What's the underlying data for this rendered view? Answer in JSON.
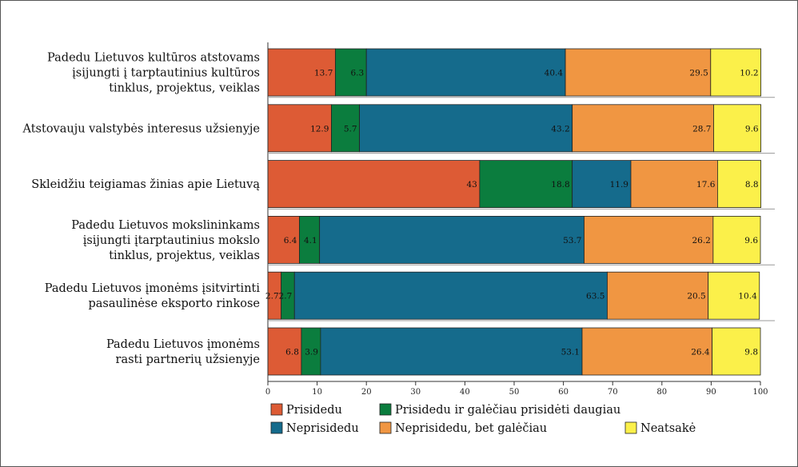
{
  "chart_data": {
    "type": "bar",
    "stacked": true,
    "orientation": "horizontal",
    "categories": [
      [
        "Padedu Lietuvos kultūros atstovams",
        "įsijungti į tarptautinius kultūros",
        "tinklus, projektus, veiklas"
      ],
      [
        "Atstovauju valstybės interesus užsienyje"
      ],
      [
        "Skleidžiu teigiamas žinias apie Lietuvą"
      ],
      [
        "Padedu Lietuvos mokslininkams",
        "įsijungti įtarptautinius mokslo",
        "tinklus, projektus, veiklas"
      ],
      [
        "Padedu Lietuvos įmonėms įsitvirtinti",
        "pasaulinėse eksporto rinkose"
      ],
      [
        "Padedu Lietuvos įmonėms",
        "rasti partnerių užsienyje"
      ]
    ],
    "series": [
      {
        "name": "Prisidedu",
        "color": "#dd5b35",
        "values": [
          13.7,
          12.9,
          43,
          6.4,
          2.7,
          6.8
        ]
      },
      {
        "name": "Prisidedu ir galėčiau prisidėti daugiau",
        "color": "#0b7d3e",
        "values": [
          6.3,
          5.7,
          18.8,
          4.1,
          2.7,
          3.9
        ]
      },
      {
        "name": "Neprisidedu",
        "color": "#156b8c",
        "values": [
          40.4,
          43.2,
          11.9,
          53.7,
          63.5,
          53.1
        ]
      },
      {
        "name": "Neprisidedu, bet galėčiau",
        "color": "#f09642",
        "values": [
          29.5,
          28.7,
          17.6,
          26.2,
          20.5,
          26.4
        ]
      },
      {
        "name": "Neatsakė",
        "color": "#fbf04a",
        "values": [
          10.2,
          9.6,
          8.8,
          9.6,
          10.4,
          9.8
        ]
      }
    ],
    "value_labels": [
      [
        "13.7",
        "6.3",
        "40.4",
        "29.5",
        "10.2"
      ],
      [
        "12.9",
        "5.7",
        "43.2",
        "28.7",
        "9.6"
      ],
      [
        "43",
        "18.8",
        "11.9",
        "17.6",
        "8.8"
      ],
      [
        "6.4",
        "4.1",
        "53.7",
        "26.2",
        "9.6"
      ],
      [
        "2.7",
        "2.7",
        "63.5",
        "20.5",
        "10.4"
      ],
      [
        "6.8",
        "3.9",
        "53.1",
        "26.4",
        "9.8"
      ]
    ],
    "xlim": [
      0,
      100
    ],
    "xticks": [
      0,
      10,
      20,
      30,
      40,
      50,
      60,
      70,
      80,
      90,
      100
    ],
    "grid": false,
    "legend_position": "bottom"
  }
}
